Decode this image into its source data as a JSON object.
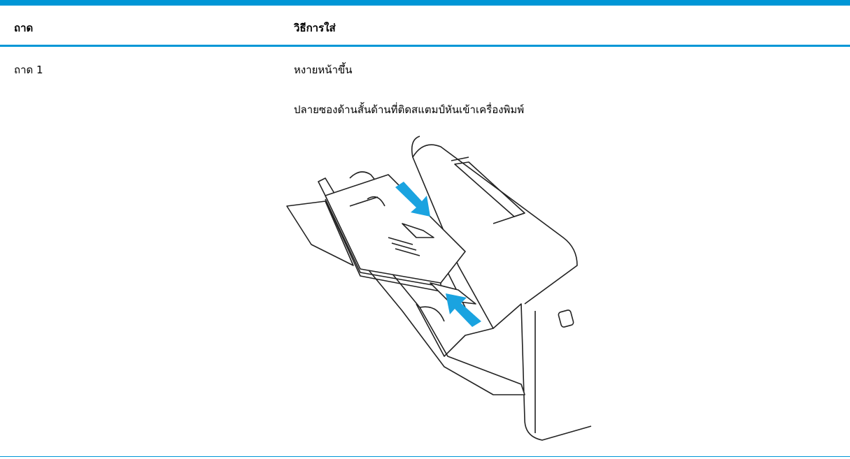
{
  "table": {
    "headers": [
      "ถาด",
      "วิธีการใส่"
    ],
    "rows": [
      {
        "tray": "ถาด 1",
        "instructions": [
          "หงายหน้าขึ้น",
          "ปลายซองด้านสั้นด้านที่ติดสแตมป์หันเข้าเครื่องพิมพ์"
        ]
      }
    ]
  }
}
